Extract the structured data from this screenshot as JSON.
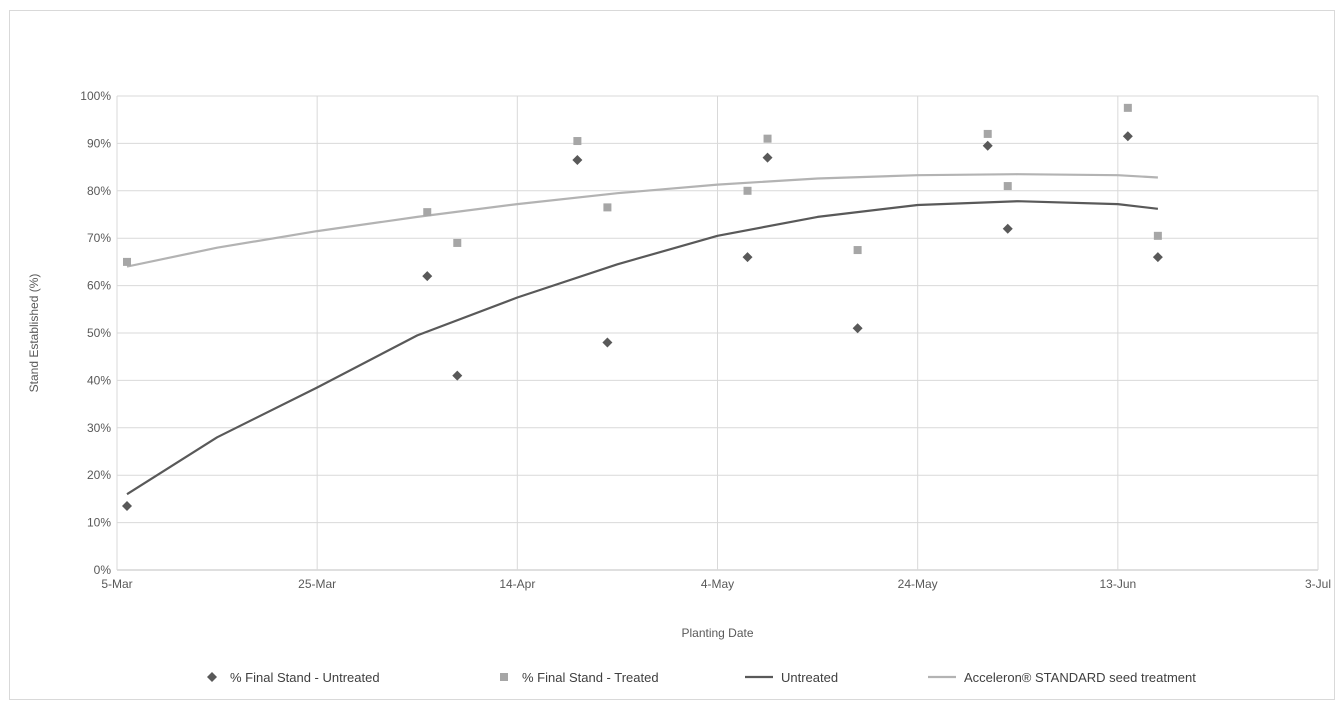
{
  "chart_data": {
    "type": "scatter",
    "title": "",
    "xlabel": "Planting Date",
    "ylabel": "Stand Established (%)",
    "x_ticks": [
      "5-Mar",
      "25-Mar",
      "14-Apr",
      "4-May",
      "24-May",
      "13-Jun",
      "3-Jul"
    ],
    "y_ticks": [
      "0%",
      "10%",
      "20%",
      "30%",
      "40%",
      "50%",
      "60%",
      "70%",
      "80%",
      "90%",
      "100%"
    ],
    "xlim": [
      "5-Mar",
      "3-Jul"
    ],
    "ylim": [
      0,
      100
    ],
    "grid": true,
    "legend_position": "bottom",
    "series": [
      {
        "name": "% Final Stand - Untreated",
        "kind": "scatter",
        "marker": "diamond",
        "color": "#595959",
        "points": [
          {
            "x": "6-Mar",
            "y": 13.5
          },
          {
            "x": "5-Apr",
            "y": 62
          },
          {
            "x": "8-Apr",
            "y": 41
          },
          {
            "x": "20-Apr",
            "y": 86.5
          },
          {
            "x": "23-Apr",
            "y": 48
          },
          {
            "x": "7-May",
            "y": 66
          },
          {
            "x": "9-May",
            "y": 87
          },
          {
            "x": "18-May",
            "y": 51
          },
          {
            "x": "31-May",
            "y": 89.5
          },
          {
            "x": "2-Jun",
            "y": 72
          },
          {
            "x": "14-Jun",
            "y": 91.5
          },
          {
            "x": "17-Jun",
            "y": 66
          }
        ]
      },
      {
        "name": "% Final Stand - Treated",
        "kind": "scatter",
        "marker": "square",
        "color": "#a6a6a6",
        "points": [
          {
            "x": "6-Mar",
            "y": 65
          },
          {
            "x": "5-Apr",
            "y": 75.5
          },
          {
            "x": "8-Apr",
            "y": 69
          },
          {
            "x": "20-Apr",
            "y": 90.5
          },
          {
            "x": "23-Apr",
            "y": 76.5
          },
          {
            "x": "7-May",
            "y": 80
          },
          {
            "x": "9-May",
            "y": 91
          },
          {
            "x": "18-May",
            "y": 67.5
          },
          {
            "x": "31-May",
            "y": 92
          },
          {
            "x": "2-Jun",
            "y": 81
          },
          {
            "x": "14-Jun",
            "y": 97.5
          },
          {
            "x": "17-Jun",
            "y": 70.5
          }
        ]
      },
      {
        "name": "Untreated",
        "kind": "line",
        "color": "#595959",
        "points": [
          {
            "x": "6-Mar",
            "y": 16
          },
          {
            "x": "15-Mar",
            "y": 28
          },
          {
            "x": "25-Mar",
            "y": 38.5
          },
          {
            "x": "4-Apr",
            "y": 49.5
          },
          {
            "x": "14-Apr",
            "y": 57.5
          },
          {
            "x": "24-Apr",
            "y": 64.5
          },
          {
            "x": "4-May",
            "y": 70.5
          },
          {
            "x": "14-May",
            "y": 74.5
          },
          {
            "x": "24-May",
            "y": 77
          },
          {
            "x": "3-Jun",
            "y": 77.8
          },
          {
            "x": "13-Jun",
            "y": 77.2
          },
          {
            "x": "17-Jun",
            "y": 76.2
          }
        ]
      },
      {
        "name": "Acceleron® STANDARD seed treatment",
        "kind": "line",
        "color": "#b3b3b3",
        "points": [
          {
            "x": "6-Mar",
            "y": 64
          },
          {
            "x": "15-Mar",
            "y": 68
          },
          {
            "x": "25-Mar",
            "y": 71.5
          },
          {
            "x": "4-Apr",
            "y": 74.5
          },
          {
            "x": "14-Apr",
            "y": 77.2
          },
          {
            "x": "24-Apr",
            "y": 79.5
          },
          {
            "x": "4-May",
            "y": 81.3
          },
          {
            "x": "14-May",
            "y": 82.6
          },
          {
            "x": "24-May",
            "y": 83.3
          },
          {
            "x": "3-Jun",
            "y": 83.5
          },
          {
            "x": "13-Jun",
            "y": 83.3
          },
          {
            "x": "17-Jun",
            "y": 82.8
          }
        ]
      }
    ]
  }
}
